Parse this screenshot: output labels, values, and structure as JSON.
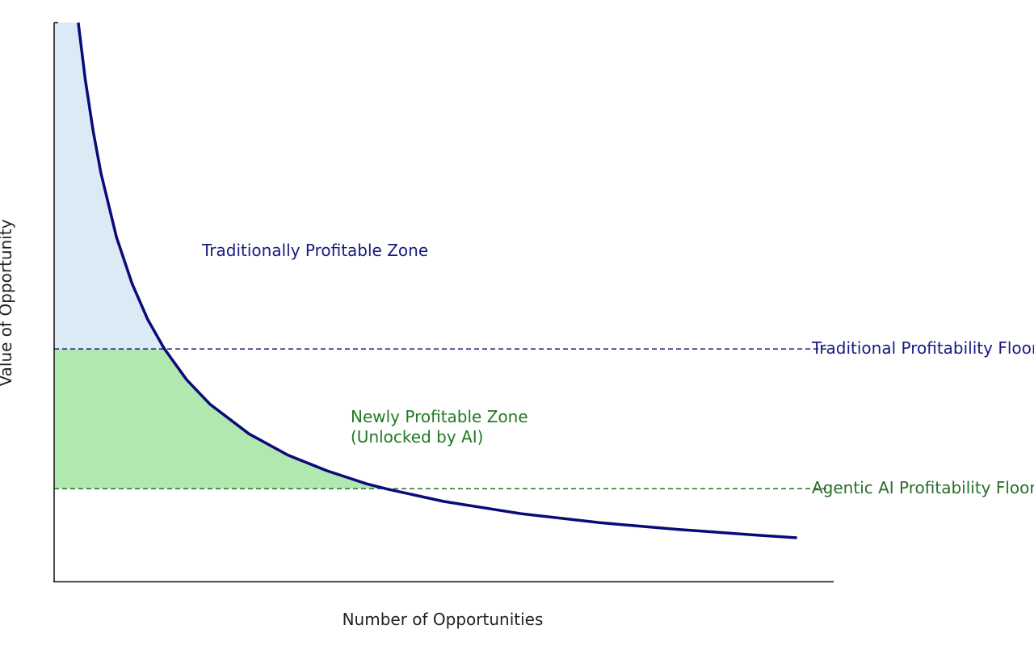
{
  "chart_data": {
    "type": "line",
    "x_label": "Number of Opportunities",
    "y_label": "Value of Opportunity",
    "xlim": [
      0,
      10
    ],
    "ylim": [
      0,
      10
    ],
    "x": [
      0.31,
      0.4,
      0.5,
      0.6,
      0.8,
      1.0,
      1.2,
      1.41,
      1.7,
      2.0,
      2.5,
      3.0,
      3.5,
      4.0,
      4.28,
      5.0,
      6.0,
      7.0,
      8.0,
      9.0,
      9.53
    ],
    "values": [
      10.0,
      8.98,
      8.06,
      7.31,
      6.16,
      5.33,
      4.69,
      4.17,
      3.61,
      3.17,
      2.64,
      2.26,
      1.98,
      1.75,
      1.65,
      1.43,
      1.21,
      1.05,
      0.93,
      0.83,
      0.78
    ],
    "color": "#0a0a78",
    "reference_lines": [
      {
        "label": "Traditional Profitability Floor",
        "value": 4.16,
        "color": "#1a1a80",
        "fill": "#dbeaf4"
      },
      {
        "label": "Agentic AI Profitability Floor",
        "value": 1.66,
        "color": "#2a6e2a",
        "fill": "#b0e8b0"
      }
    ],
    "annotations": [
      {
        "text": "Traditionally Profitable Zone",
        "color": "#1a1a80"
      },
      {
        "lines": [
          "Newly Profitable Zone",
          "(Unlocked by AI)"
        ],
        "color": "#1f7a1f"
      }
    ]
  }
}
